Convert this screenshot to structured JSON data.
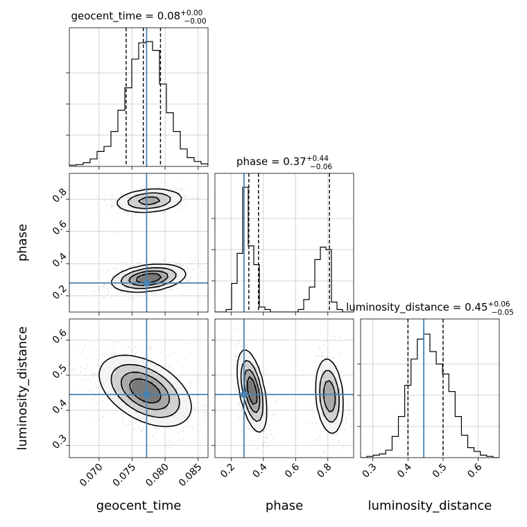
{
  "chart_data": {
    "type": "corner",
    "parameters": [
      {
        "key": "geocent_time",
        "label": "geocent_time",
        "title": {
          "prefix": "geocent_time = ",
          "median": "0.08",
          "upper": "+0.00",
          "lower": "−0.00"
        },
        "range": [
          0.0655,
          0.0865
        ],
        "ticks": [
          0.07,
          0.075,
          0.08,
          0.085
        ],
        "tick_labels": [
          "0.070",
          "0.075",
          "0.080",
          "0.085"
        ],
        "quantiles": [
          0.0741,
          0.0767,
          0.0793
        ],
        "truth": 0.0772,
        "hist": [
          0.01,
          0.015,
          0.03,
          0.06,
          0.12,
          0.16,
          0.28,
          0.45,
          0.63,
          0.86,
          0.99,
          1.0,
          0.93,
          0.66,
          0.43,
          0.28,
          0.14,
          0.07,
          0.04,
          0.02
        ]
      },
      {
        "key": "phase",
        "label": "phase",
        "title": {
          "prefix": "phase = ",
          "median": "0.37",
          "upper": "+0.44",
          "lower": "−0.06"
        },
        "range": [
          0.1,
          0.96
        ],
        "ticks": [
          0.2,
          0.4,
          0.6,
          0.8
        ],
        "tick_labels": [
          "0.2",
          "0.4",
          "0.6",
          "0.8"
        ],
        "quantiles": [
          0.31,
          0.37,
          0.81
        ],
        "truth": 0.28,
        "hist": [
          0.0,
          0.0,
          0.02,
          0.23,
          0.47,
          1.0,
          0.53,
          0.38,
          0.04,
          0.02,
          0.0,
          0.0,
          0.0,
          0.0,
          0.0,
          0.02,
          0.1,
          0.2,
          0.42,
          0.52,
          0.5,
          0.08,
          0.02,
          0.0,
          0.0
        ]
      },
      {
        "key": "luminosity_distance",
        "label": "luminosity_distance",
        "title": {
          "prefix": "luminosity_distance = ",
          "median": "0.45",
          "upper": "+0.06",
          "lower": "−0.05"
        },
        "range": [
          0.265,
          0.66
        ],
        "ticks": [
          0.3,
          0.4,
          0.5,
          0.6
        ],
        "tick_labels": [
          "0.3",
          "0.4",
          "0.5",
          "0.6"
        ],
        "quantiles": [
          0.4,
          0.445,
          0.5
        ],
        "truth": 0.445,
        "hist": [
          0.0,
          0.01,
          0.02,
          0.03,
          0.06,
          0.17,
          0.33,
          0.58,
          0.79,
          0.95,
          0.99,
          0.85,
          0.75,
          0.67,
          0.53,
          0.33,
          0.18,
          0.08,
          0.05,
          0.02,
          0.01,
          0.0
        ]
      }
    ],
    "truth_color": "#4682b4",
    "pairs": [
      {
        "row": 1,
        "col": 0,
        "clusters": [
          {
            "cx": 0.0776,
            "cy": 0.79,
            "sx": 0.0024,
            "sy": 0.035,
            "rho": 0.2,
            "count": 300
          },
          {
            "cx": 0.0775,
            "cy": 0.31,
            "sx": 0.0025,
            "sy": 0.038,
            "rho": 0.3,
            "count": 480
          }
        ]
      },
      {
        "row": 2,
        "col": 0,
        "clusters": [
          {
            "cx": 0.077,
            "cy": 0.455,
            "sx": 0.0031,
            "sy": 0.045,
            "rho": -0.45,
            "count": 800
          }
        ]
      },
      {
        "row": 2,
        "col": 1,
        "clusters": [
          {
            "cx": 0.33,
            "cy": 0.455,
            "sx": 0.04,
            "sy": 0.052,
            "rho": -0.5,
            "count": 460
          },
          {
            "cx": 0.81,
            "cy": 0.44,
            "sx": 0.04,
            "sy": 0.05,
            "rho": -0.2,
            "count": 340
          }
        ]
      }
    ]
  }
}
